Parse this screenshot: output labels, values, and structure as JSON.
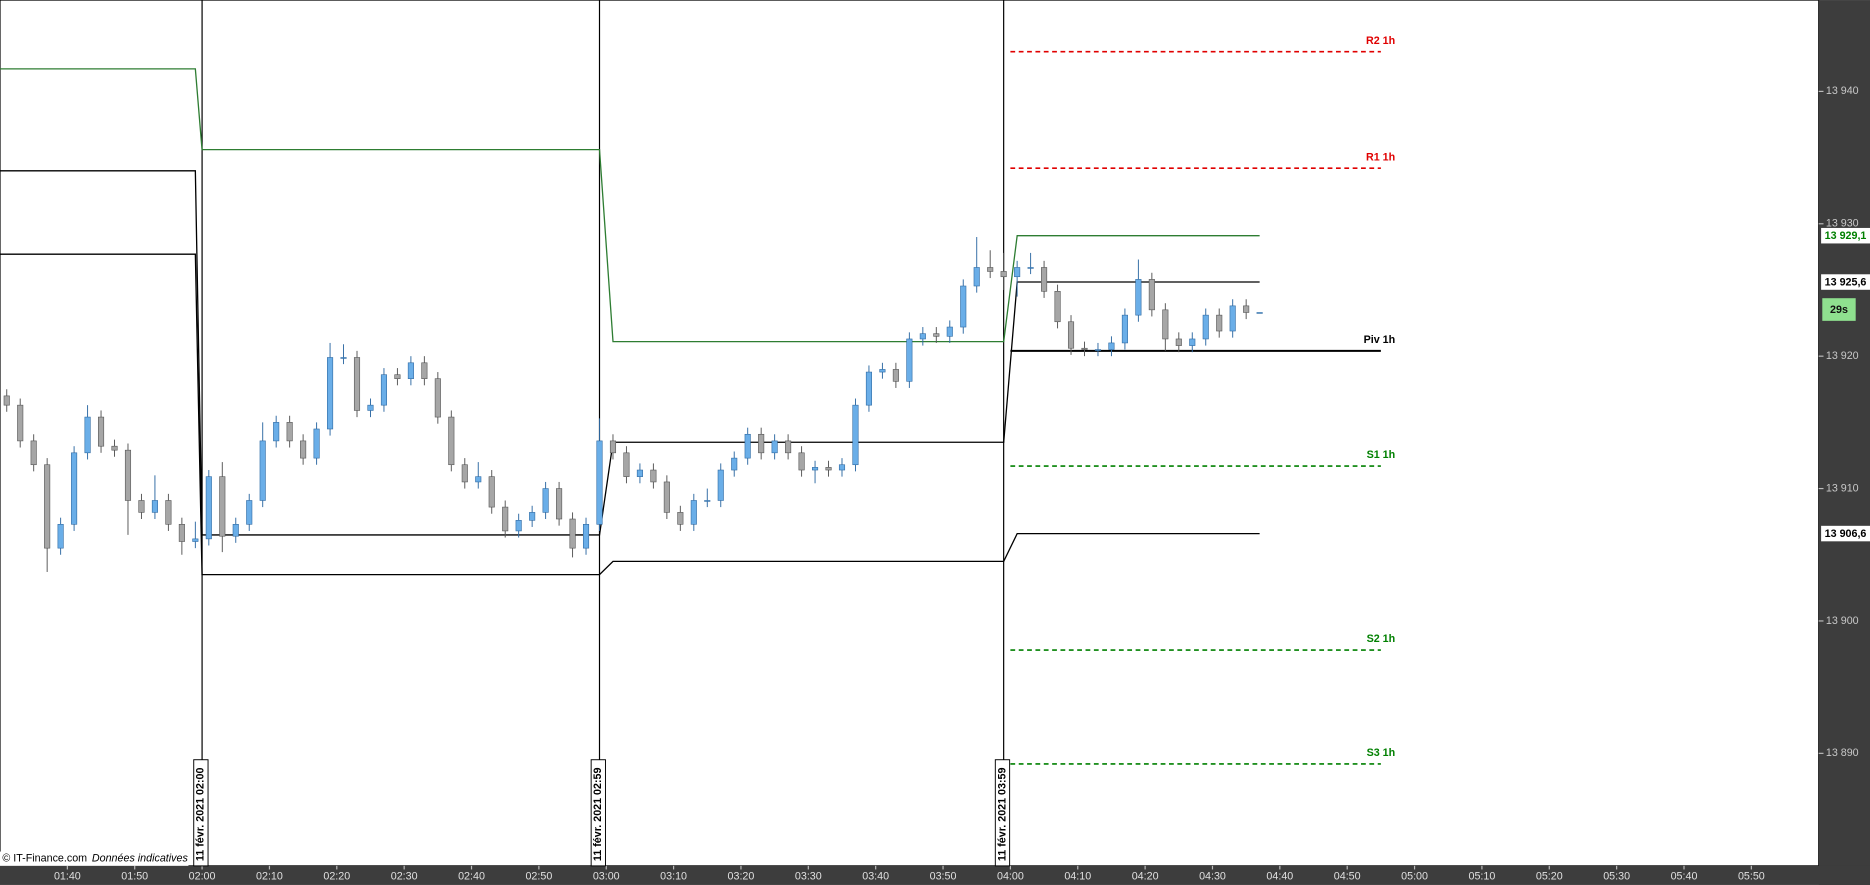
{
  "chart_data": {
    "type": "candlestick",
    "x": [
      "01:31",
      "01:33",
      "01:35",
      "01:37",
      "01:39",
      "01:41",
      "01:43",
      "01:45",
      "01:47",
      "01:49",
      "01:51",
      "01:53",
      "01:55",
      "01:57",
      "01:59",
      "02:01",
      "02:03",
      "02:05",
      "02:07",
      "02:09",
      "02:11",
      "02:13",
      "02:15",
      "02:17",
      "02:19",
      "02:21",
      "02:23",
      "02:25",
      "02:27",
      "02:29",
      "02:31",
      "02:33",
      "02:35",
      "02:37",
      "02:39",
      "02:41",
      "02:43",
      "02:45",
      "02:47",
      "02:49",
      "02:51",
      "02:53",
      "02:55",
      "02:57",
      "02:59",
      "03:01",
      "03:03",
      "03:05",
      "03:07",
      "03:09",
      "03:11",
      "03:13",
      "03:15",
      "03:17",
      "03:19",
      "03:21",
      "03:23",
      "03:25",
      "03:27",
      "03:29",
      "03:31",
      "03:33",
      "03:35",
      "03:37",
      "03:39",
      "03:41",
      "03:43",
      "03:45",
      "03:47",
      "03:49",
      "03:51",
      "03:53",
      "03:55",
      "03:57",
      "03:59",
      "04:01",
      "04:03",
      "04:05",
      "04:07",
      "04:09",
      "04:11",
      "04:13",
      "04:15",
      "04:17",
      "04:19",
      "04:21",
      "04:23",
      "04:25",
      "04:27",
      "04:29",
      "04:31",
      "04:33",
      "04:35",
      "04:37"
    ],
    "open": [
      13917.0,
      13916.3,
      13913.6,
      13911.8,
      13905.5,
      13907.3,
      13912.7,
      13915.4,
      13913.2,
      13912.9,
      13909.1,
      13908.2,
      13909.1,
      13907.3,
      13906.0,
      13906.2,
      13910.9,
      13906.4,
      13907.3,
      13909.1,
      13913.6,
      13915.0,
      13913.6,
      13912.3,
      13914.5,
      13919.9,
      13919.9,
      13915.9,
      13916.3,
      13918.6,
      13918.3,
      13919.5,
      13918.3,
      13915.4,
      13911.8,
      13910.5,
      13910.9,
      13908.6,
      13906.8,
      13907.6,
      13908.2,
      13910.0,
      13907.7,
      13905.5,
      13907.3,
      13913.6,
      13912.7,
      13910.9,
      13911.4,
      13910.5,
      13908.2,
      13907.3,
      13909.1,
      13909.1,
      13911.4,
      13912.3,
      13914.1,
      13912.7,
      13913.6,
      13912.7,
      13911.4,
      13911.6,
      13911.4,
      13911.8,
      13916.3,
      13918.8,
      13919.0,
      13918.1,
      13921.3,
      13921.7,
      13921.5,
      13922.2,
      13925.3,
      13926.7,
      13926.4,
      13926.0,
      13926.7,
      13926.7,
      13924.9,
      13922.6,
      13920.6,
      13920.5,
      13920.5,
      13921.0,
      13923.1,
      13925.8,
      13923.5,
      13921.3,
      13920.8,
      13921.3,
      13923.1,
      13921.9,
      13923.8,
      13923.3
    ],
    "high": [
      13917.5,
      13916.8,
      13914.1,
      13912.3,
      13907.8,
      13913.2,
      13916.3,
      13915.9,
      13913.7,
      13913.4,
      13909.6,
      13911.0,
      13909.6,
      13907.8,
      13907.5,
      13911.4,
      13912.0,
      13907.8,
      13909.6,
      13915.0,
      13915.5,
      13915.5,
      13914.1,
      13915.0,
      13921.0,
      13920.9,
      13920.4,
      13916.8,
      13919.1,
      13919.1,
      13920.0,
      13920.0,
      13918.8,
      13915.9,
      13912.3,
      13912.0,
      13911.4,
      13909.1,
      13908.1,
      13908.7,
      13910.5,
      13910.5,
      13908.2,
      13907.8,
      13915.3,
      13914.1,
      13913.2,
      13911.9,
      13911.9,
      13911.0,
      13908.7,
      13909.6,
      13910.0,
      13911.9,
      13912.8,
      13914.6,
      13914.6,
      13914.1,
      13914.1,
      13913.2,
      13912.1,
      13912.1,
      13912.3,
      13916.8,
      13919.3,
      13919.5,
      13919.5,
      13921.8,
      13922.2,
      13922.2,
      13922.7,
      13925.8,
      13929.0,
      13928.0,
      13927.8,
      13927.2,
      13927.8,
      13927.2,
      13925.4,
      13923.1,
      13921.1,
      13921.0,
      13921.5,
      13923.6,
      13927.3,
      13926.3,
      13924.0,
      13921.8,
      13921.8,
      13923.6,
      13923.6,
      13924.3,
      13924.3,
      13923.3
    ],
    "low": [
      13915.8,
      13913.1,
      13911.3,
      13903.7,
      13905.0,
      13906.8,
      13912.2,
      13912.7,
      13912.4,
      13906.5,
      13907.7,
      13907.7,
      13906.8,
      13905.0,
      13905.5,
      13905.7,
      13905.2,
      13905.9,
      13906.8,
      13908.6,
      13913.1,
      13913.1,
      13911.8,
      13911.8,
      13914.0,
      13919.4,
      13915.4,
      13915.4,
      13915.8,
      13917.8,
      13917.8,
      13917.8,
      13914.9,
      13911.3,
      13910.0,
      13910.0,
      13908.1,
      13906.3,
      13906.3,
      13907.1,
      13907.7,
      13907.2,
      13904.8,
      13905.0,
      13906.8,
      13912.2,
      13910.4,
      13910.4,
      13910.0,
      13907.7,
      13906.8,
      13906.8,
      13908.6,
      13908.6,
      13910.9,
      13911.8,
      13912.2,
      13912.2,
      13912.2,
      13910.9,
      13910.4,
      13910.9,
      13910.9,
      13911.3,
      13915.8,
      13918.3,
      13917.6,
      13917.6,
      13920.8,
      13921.0,
      13921.0,
      13921.7,
      13924.8,
      13925.9,
      13925.0,
      13924.5,
      13926.2,
      13924.4,
      13922.1,
      13920.1,
      13920.0,
      13920.0,
      13920.0,
      13920.5,
      13922.6,
      13923.0,
      13920.4,
      13920.3,
      13920.3,
      13920.8,
      13921.4,
      13921.4,
      13922.8,
      13923.3
    ],
    "close": [
      13916.3,
      13913.6,
      13911.8,
      13905.5,
      13907.3,
      13912.7,
      13915.4,
      13913.2,
      13912.9,
      13909.1,
      13908.2,
      13909.1,
      13907.3,
      13906.0,
      13906.2,
      13910.9,
      13906.4,
      13907.3,
      13909.1,
      13913.6,
      13915.0,
      13913.6,
      13912.3,
      13914.5,
      13919.9,
      13919.9,
      13915.9,
      13916.3,
      13918.6,
      13918.3,
      13919.5,
      13918.3,
      13915.4,
      13911.8,
      13910.5,
      13910.9,
      13908.6,
      13906.8,
      13907.6,
      13908.2,
      13910.0,
      13907.7,
      13905.5,
      13907.3,
      13913.6,
      13912.7,
      13910.9,
      13911.4,
      13910.5,
      13908.2,
      13907.3,
      13909.1,
      13909.1,
      13911.4,
      13912.3,
      13914.1,
      13912.7,
      13913.6,
      13912.7,
      13911.4,
      13911.6,
      13911.4,
      13911.8,
      13916.3,
      13918.8,
      13919.0,
      13918.1,
      13921.3,
      13921.7,
      13921.5,
      13922.2,
      13925.3,
      13926.7,
      13926.4,
      13926.0,
      13926.7,
      13926.7,
      13924.9,
      13922.6,
      13920.6,
      13920.5,
      13920.5,
      13921.0,
      13923.1,
      13925.8,
      13923.5,
      13921.3,
      13920.8,
      13921.3,
      13923.1,
      13921.9,
      13923.8,
      13923.3,
      13923.3
    ],
    "up_color": "#6aaee8",
    "down_color": "#a6a6a6",
    "lines": [
      {
        "color": "#2e7d32",
        "x": [
          "01:30",
          "01:59",
          "02:00",
          "02:59",
          "03:01",
          "03:59",
          "04:01",
          "04:37"
        ],
        "values": [
          13941.7,
          13941.7,
          13935.6,
          13935.6,
          13921.1,
          13921.1,
          13929.1,
          13929.1
        ]
      },
      {
        "color": "#000000",
        "x": [
          "01:30",
          "01:59",
          "02:00",
          "02:59",
          "03:01",
          "03:59",
          "04:01",
          "04:37"
        ],
        "values": [
          13934.0,
          13934.0,
          13906.5,
          13906.5,
          13913.5,
          13913.5,
          13925.6,
          13925.6
        ]
      },
      {
        "color": "#000000",
        "x": [
          "01:30",
          "01:59",
          "02:00",
          "02:59",
          "03:01",
          "03:59",
          "04:01",
          "04:37"
        ],
        "values": [
          13927.7,
          13927.7,
          13903.5,
          13903.5,
          13904.5,
          13904.5,
          13906.6,
          13906.6
        ]
      }
    ],
    "pivots": {
      "x": [
        "04:00",
        "04:55"
      ],
      "levels": [
        {
          "label": "R2 1h",
          "value": 13943.0,
          "color": "#e00000",
          "dashed": true
        },
        {
          "label": "R1 1h",
          "value": 13934.2,
          "color": "#e00000",
          "dashed": true
        },
        {
          "label": "Piv 1h",
          "value": 13920.4,
          "color": "#000000",
          "dashed": false
        },
        {
          "label": "S1 1h",
          "value": 13911.7,
          "color": "#008000",
          "dashed": true
        },
        {
          "label": "S2 1h",
          "value": 13897.8,
          "color": "#008000",
          "dashed": true
        },
        {
          "label": "S3 1h",
          "value": 13889.2,
          "color": "#008000",
          "dashed": true
        }
      ]
    },
    "separators": [
      {
        "x": "02:00",
        "label": "11 févr. 2021 02:00"
      },
      {
        "x": "02:59",
        "label": "11 févr. 2021 02:59"
      },
      {
        "x": "03:59",
        "label": "11 févr. 2021 03:59"
      }
    ],
    "price_labels": [
      {
        "value": 13929.1,
        "label": "13 929,1",
        "color": "#008000"
      },
      {
        "value": 13925.6,
        "label": "13 925,6",
        "color": "#000000"
      },
      {
        "value": 13906.6,
        "label": "13 906,6",
        "color": "#000000"
      }
    ],
    "countdown": "29s",
    "xlim": [
      "01:30",
      "06:00"
    ],
    "xticks": [
      "01:40",
      "01:50",
      "02:00",
      "02:10",
      "02:20",
      "02:30",
      "02:40",
      "02:50",
      "03:00",
      "03:10",
      "03:20",
      "03:30",
      "03:40",
      "03:50",
      "04:00",
      "04:10",
      "04:20",
      "04:30",
      "04:40",
      "04:50",
      "05:00",
      "05:10",
      "05:20",
      "05:30",
      "05:40",
      "05:50"
    ],
    "ylim": [
      13881.5,
      13946.9
    ],
    "yticks": [
      {
        "value": 13890,
        "label": "13 890"
      },
      {
        "value": 13900,
        "label": "13 900"
      },
      {
        "value": 13910,
        "label": "13 910"
      },
      {
        "value": 13920,
        "label": "13 920"
      },
      {
        "value": 13930,
        "label": "13 930"
      },
      {
        "value": 13940,
        "label": "13 940"
      }
    ],
    "footer": {
      "source": "© IT-Finance.com",
      "note": "Données indicatives"
    }
  }
}
